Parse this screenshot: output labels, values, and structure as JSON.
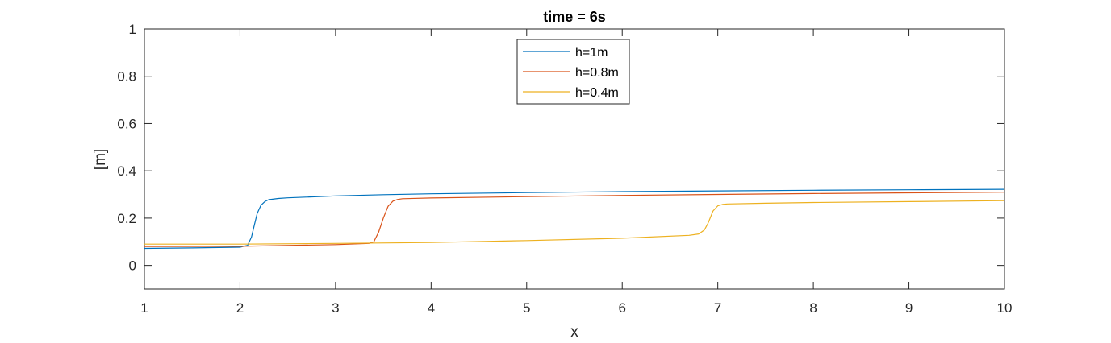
{
  "chart_data": {
    "type": "line",
    "title": "time = 6s",
    "xlabel": "x",
    "ylabel": "[m]",
    "xlim": [
      1,
      10
    ],
    "ylim": [
      -0.1,
      1
    ],
    "xticks": [
      1,
      2,
      3,
      4,
      5,
      6,
      7,
      8,
      9,
      10
    ],
    "yticks": [
      0,
      0.2,
      0.4,
      0.6,
      0.8,
      1
    ],
    "ytick_labels": [
      "0",
      "0.2",
      "0.4",
      "0.6",
      "0.8",
      "1"
    ],
    "grid": false,
    "legend_position": "top-center",
    "series": [
      {
        "name": "h=1m",
        "color": "#0072BD",
        "x": [
          1.0,
          1.5,
          2.0,
          2.08,
          2.12,
          2.15,
          2.18,
          2.22,
          2.26,
          2.3,
          2.4,
          2.5,
          3.0,
          3.5,
          4.0,
          5.0,
          6.0,
          7.0,
          8.0,
          9.0,
          10.0
        ],
        "y": [
          0.072,
          0.074,
          0.077,
          0.085,
          0.12,
          0.17,
          0.22,
          0.255,
          0.27,
          0.278,
          0.283,
          0.286,
          0.294,
          0.299,
          0.303,
          0.308,
          0.312,
          0.315,
          0.318,
          0.32,
          0.322
        ]
      },
      {
        "name": "h=0.8m",
        "color": "#D95319",
        "x": [
          1.0,
          2.0,
          3.0,
          3.35,
          3.4,
          3.45,
          3.5,
          3.55,
          3.6,
          3.65,
          3.7,
          4.0,
          5.0,
          6.0,
          7.0,
          8.0,
          9.0,
          10.0
        ],
        "y": [
          0.08,
          0.081,
          0.088,
          0.093,
          0.1,
          0.14,
          0.2,
          0.25,
          0.272,
          0.279,
          0.282,
          0.285,
          0.291,
          0.296,
          0.3,
          0.304,
          0.307,
          0.31
        ]
      },
      {
        "name": "h=0.4m",
        "color": "#EDB120",
        "x": [
          1.0,
          2.0,
          3.0,
          4.0,
          5.0,
          6.0,
          6.7,
          6.8,
          6.86,
          6.9,
          6.95,
          7.0,
          7.05,
          7.1,
          7.5,
          8.0,
          9.0,
          10.0
        ],
        "y": [
          0.09,
          0.09,
          0.093,
          0.097,
          0.105,
          0.115,
          0.127,
          0.133,
          0.15,
          0.18,
          0.23,
          0.252,
          0.258,
          0.26,
          0.263,
          0.266,
          0.27,
          0.274
        ]
      }
    ]
  }
}
